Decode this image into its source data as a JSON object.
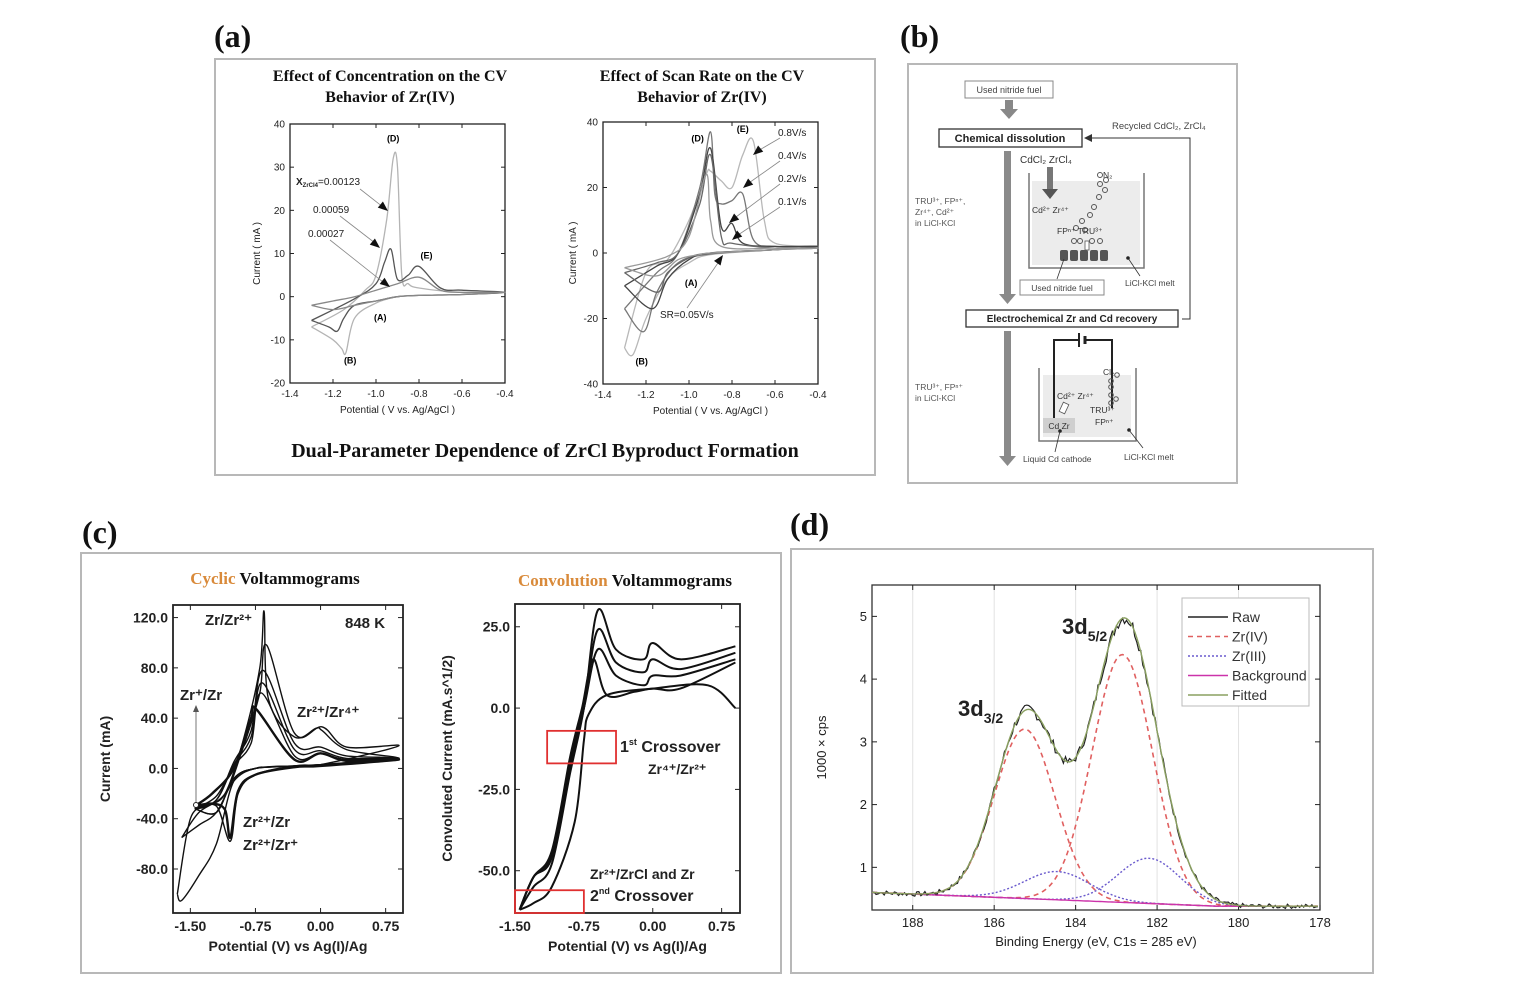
{
  "panels": {
    "a": {
      "letter": "(a)",
      "left_title": "Effect of Concentration on the CV Behavior of Zr(IV)",
      "right_title": "Effect of Scan Rate on the CV Behavior of Zr(IV)",
      "footer": "Dual-Parameter Dependence of ZrCl Byproduct Formation"
    },
    "b": {
      "letter": "(b)"
    },
    "c": {
      "letter": "(c)",
      "left_title_orange": "Cyclic",
      "left_title_rest": " Voltammograms",
      "right_title_orange": "Convolution",
      "right_title_rest": " Voltammograms"
    },
    "d": {
      "letter": "(d)"
    }
  },
  "flowchart": {
    "used_fuel_top": "Used nitride fuel",
    "chemical_dissolution": "Chemical dissolution",
    "recycled": "Recycled CdCl₂, ZrCl₄",
    "reagents": "CdCl₂ ZrCl₄",
    "n2": "N₂",
    "cd_zr_ions": "Cd²⁺ Zr⁴⁺",
    "fp_tru": "FPⁿ⁺ TRU³⁺",
    "side_text_1": [
      "TRU³⁺, FPⁿ⁺,",
      "Zr⁴⁺, Cd²⁺",
      "in LiCl-KCl"
    ],
    "used_fuel_label": "Used nitride fuel",
    "melt_label_1": "LiCl-KCl melt",
    "electrochemical": "Electrochemical Zr and Cd recovery",
    "cl2": "Cl₂",
    "cd_zr_ions_2": "Cd²⁺ Zr⁴⁺",
    "tru_fp": [
      "TRU³⁺",
      "FPⁿ⁺"
    ],
    "cd_zr_box": "Cd Zr",
    "side_text_2": [
      "TRU³⁺, FPⁿ⁺",
      "in LiCl-KCl"
    ],
    "cathode_label": "Liquid Cd cathode",
    "melt_label_2": "LiCl-KCl melt"
  },
  "chart_data": [
    {
      "id": "a-left",
      "type": "line",
      "title": "Effect of Concentration on the CV Behavior of Zr(IV)",
      "xlabel": "Potential ( V vs. Ag/AgCl )",
      "ylabel": "Current ( mA )",
      "xlim": [
        -1.4,
        -0.4
      ],
      "ylim": [
        -20,
        40
      ],
      "xticks": [
        "-1.4",
        "-1.2",
        "-1.0",
        "-0.8",
        "-0.6",
        "-0.4"
      ],
      "yticks": [
        "-20",
        "-10",
        "0",
        "10",
        "20",
        "30",
        "40"
      ],
      "annotations": [
        "(D)",
        "(E)",
        "(A)",
        "(B)"
      ],
      "series": [
        {
          "name": "X_ZrCl4=0.00123",
          "label_main": "X",
          "label_sub": "ZrCl4",
          "label_val": "=0.00123",
          "color": "#b4b4b4",
          "x": [
            -1.3,
            -1.2,
            -1.16,
            -1.14,
            -1.1,
            -1.0,
            -0.9,
            -0.8,
            -0.6,
            -0.4,
            -0.6,
            -0.8,
            -0.85,
            -0.88,
            -0.9,
            -0.92,
            -0.95,
            -1.0,
            -1.05,
            -1.15,
            -1.3
          ],
          "y": [
            -7,
            -10,
            -12,
            -13,
            -5,
            -1.5,
            0,
            0.3,
            0.5,
            1,
            1,
            2,
            3,
            5,
            30,
            32,
            18,
            5,
            1.5,
            -3,
            -7
          ]
        },
        {
          "name": "0.00059",
          "color": "#555555",
          "x": [
            -1.3,
            -1.22,
            -1.18,
            -1.15,
            -1.1,
            -1.0,
            -0.9,
            -0.8,
            -0.6,
            -0.4,
            -0.6,
            -0.7,
            -0.8,
            -0.85,
            -0.9,
            -0.93,
            -0.96,
            -1.0,
            -1.1,
            -1.3
          ],
          "y": [
            -5.5,
            -7,
            -8,
            -5,
            -2,
            -1,
            0,
            0.3,
            0.5,
            1,
            1.5,
            2,
            7,
            5,
            4,
            11,
            8,
            3,
            -0.5,
            -5.5
          ]
        },
        {
          "name": "0.00027",
          "color": "#888888",
          "x": [
            -1.3,
            -1.2,
            -1.1,
            -1.0,
            -0.9,
            -0.8,
            -0.6,
            -0.4,
            -0.6,
            -0.7,
            -0.8,
            -0.9,
            -1.0,
            -1.1,
            -1.2,
            -1.3
          ],
          "y": [
            -2,
            -3,
            -2,
            -1,
            0,
            0.3,
            0.5,
            1,
            1,
            1.5,
            4.5,
            3,
            1.5,
            0,
            -1,
            -2
          ]
        }
      ]
    },
    {
      "id": "a-right",
      "type": "line",
      "title": "Effect of Scan Rate on the CV Behavior of Zr(IV)",
      "xlabel": "Potential ( V vs. Ag/AgCl )",
      "ylabel": "Current ( mA )",
      "xlim": [
        -1.4,
        -0.4
      ],
      "ylim": [
        -40,
        40
      ],
      "xticks": [
        "-1.4",
        "-1.2",
        "-1.0",
        "-0.8",
        "-0.6",
        "-0.4"
      ],
      "yticks": [
        "-40",
        "-20",
        "0",
        "20",
        "40"
      ],
      "annotations": [
        "(D)",
        "(E)",
        "(A)",
        "(B)"
      ],
      "series": [
        {
          "name": "0.8V/s",
          "color": "#b8b8b8",
          "x": [
            -1.3,
            -1.26,
            -1.2,
            -1.1,
            -1.0,
            -0.9,
            -0.6,
            -0.4,
            -0.6,
            -0.65,
            -0.7,
            -0.75,
            -0.8,
            -0.85,
            -0.9,
            -0.92,
            -1.0,
            -1.1,
            -1.2,
            -1.3
          ],
          "y": [
            -29,
            -31,
            -20,
            -8,
            -3,
            -0.5,
            1,
            2,
            3,
            10,
            34,
            30,
            20,
            22,
            25,
            24,
            10,
            -2,
            -6,
            -29
          ]
        },
        {
          "name": "0.4V/s",
          "color": "#777777",
          "x": [
            -1.3,
            -1.21,
            -1.15,
            -1.05,
            -0.9,
            -0.6,
            -0.4,
            -0.6,
            -0.7,
            -0.75,
            -0.8,
            -0.85,
            -0.88,
            -0.9,
            -0.95,
            -1.05,
            -1.15,
            -1.3
          ],
          "y": [
            -17,
            -24,
            -12,
            -3,
            -0.3,
            1,
            2,
            2,
            4,
            18,
            16,
            15,
            18,
            37,
            20,
            0,
            -6,
            -17
          ]
        },
        {
          "name": "0.2V/s",
          "color": "#444444",
          "x": [
            -1.3,
            -1.17,
            -1.1,
            -1.0,
            -0.9,
            -0.6,
            -0.4,
            -0.6,
            -0.75,
            -0.8,
            -0.85,
            -0.9,
            -0.95,
            -1.05,
            -1.15,
            -1.3
          ],
          "y": [
            -10,
            -17,
            -8,
            -2,
            0,
            1,
            2,
            2,
            3,
            9,
            8,
            32,
            18,
            0,
            -4,
            -10
          ]
        },
        {
          "name": "0.1V/s",
          "color": "#666666",
          "x": [
            -1.3,
            -1.15,
            -1.1,
            -1.0,
            -0.9,
            -0.6,
            -0.4,
            -0.6,
            -0.8,
            -0.85,
            -0.9,
            -0.95,
            -1.05,
            -1.15,
            -1.3
          ],
          "y": [
            -6,
            -12,
            -6,
            -1.5,
            0,
            1,
            1.5,
            1.5,
            3,
            5,
            30,
            15,
            0,
            -3,
            -6
          ]
        },
        {
          "name": "SR=0.05V/s",
          "color": "#999999",
          "x": [
            -1.3,
            -1.15,
            -1.05,
            -0.95,
            -0.9,
            -0.6,
            -0.4,
            -0.6,
            -0.85,
            -0.9,
            -0.92,
            -1.0,
            -1.1,
            -1.3
          ],
          "y": [
            -4.5,
            -7,
            -2,
            -0.5,
            0,
            1,
            1.5,
            1.5,
            2,
            10,
            24,
            5,
            -1,
            -4.5
          ]
        }
      ],
      "series_labels": [
        "0.8V/s",
        "0.4V/s",
        "0.2V/s",
        "0.1V/s",
        "SR=0.05V/s"
      ]
    },
    {
      "id": "c-left",
      "type": "line",
      "title": "Cyclic Voltammograms",
      "xlabel": "Potential (V) vs Ag(I)/Ag",
      "ylabel": "Current (mA)",
      "xlim": [
        -1.7,
        0.95
      ],
      "ylim": [
        -115,
        130
      ],
      "xticks": [
        "-1.50",
        "-0.75",
        "0.00",
        "0.75"
      ],
      "xtick_values": [
        -1.5,
        -0.75,
        0,
        0.75
      ],
      "yticks": [
        "-80.0",
        "-40.0",
        "0.0",
        "40.0",
        "80.0",
        "120.0"
      ],
      "ytick_values": [
        -80,
        -40,
        0,
        40,
        80,
        120
      ],
      "annotations": [
        "Zr/Zr²⁺",
        "848 K",
        "Zr⁺/Zr",
        "Zr²⁺/Zr⁴⁺",
        "Zr²⁺/Zr",
        "Zr²⁺/Zr⁺"
      ],
      "peaks_mA": [
        125,
        98,
        78,
        68,
        60,
        47
      ],
      "series": [
        {
          "name": "scan1",
          "x": [
            -1.65,
            -1.6,
            -1.4,
            -1.2,
            -1.0,
            -0.75,
            -0.6,
            -0.25,
            0.0,
            0.3,
            0.9,
            0.3,
            0.02,
            -0.05,
            -0.3,
            -0.6,
            -0.65,
            -0.7,
            -0.9,
            -1.1,
            -1.3,
            -1.5,
            -1.65
          ],
          "y": [
            -100,
            -105,
            -85,
            -60,
            -10,
            0,
            1,
            2,
            3,
            4,
            8,
            15,
            30,
            32,
            25,
            55,
            125,
            80,
            20,
            -20,
            -30,
            -40,
            -100
          ]
        },
        {
          "name": "scan2",
          "x": [
            -1.6,
            -1.4,
            -1.2,
            -1.0,
            -0.75,
            -0.3,
            0.0,
            0.9,
            0.3,
            0.02,
            -0.3,
            -0.62,
            -0.7,
            -0.9,
            -1.1,
            -1.4,
            -1.6
          ],
          "y": [
            -55,
            -45,
            -35,
            -10,
            0,
            2,
            3,
            18,
            17,
            33,
            28,
            98,
            60,
            15,
            -20,
            -35,
            -55
          ]
        },
        {
          "name": "scan3",
          "x": [
            -1.45,
            -1.2,
            -1.0,
            -0.75,
            -0.3,
            0.0,
            0.9,
            0.3,
            0.0,
            -0.3,
            -0.66,
            -0.8,
            -1.0,
            -1.2,
            -1.45
          ],
          "y": [
            -32,
            -35,
            -8,
            0,
            2,
            3,
            8,
            10,
            17,
            20,
            78,
            30,
            5,
            -25,
            -32
          ]
        },
        {
          "name": "scan4",
          "x": [
            -1.45,
            -1.2,
            -1.0,
            -0.75,
            -0.3,
            0.0,
            0.9,
            0.3,
            0.0,
            -0.3,
            -0.67,
            -0.8,
            -1.0,
            -1.2,
            -1.45
          ],
          "y": [
            -32,
            -35,
            -8,
            0,
            2,
            3,
            8,
            8,
            14,
            15,
            68,
            25,
            3,
            -25,
            -32
          ]
        },
        {
          "name": "scan5",
          "x": [
            -1.45,
            -1.2,
            -1.04,
            -0.95,
            -0.75,
            -0.3,
            0.0,
            0.9,
            0.3,
            0.0,
            -0.3,
            -0.68,
            -0.8,
            -1.0,
            -1.2,
            -1.45
          ],
          "y": [
            -32,
            -30,
            -58,
            -20,
            -5,
            2,
            3,
            8,
            7,
            12,
            10,
            60,
            20,
            2,
            -22,
            -32
          ]
        },
        {
          "name": "scan6",
          "x": [
            -1.45,
            -1.25,
            -1.1,
            -1.04,
            -0.95,
            -0.75,
            -0.3,
            0.0,
            0.9,
            0.3,
            0.0,
            -0.3,
            -0.74,
            -0.8,
            -1.0,
            -1.25,
            -1.45
          ],
          "y": [
            -30,
            -28,
            -33,
            -55,
            -18,
            -5,
            1,
            2,
            7,
            6,
            12,
            7,
            47,
            40,
            0,
            -20,
            -30
          ]
        }
      ]
    },
    {
      "id": "c-right",
      "type": "line",
      "title": "Convolution Voltammograms",
      "xlabel": "Potential (V) vs Ag(I)/Ag",
      "ylabel": "Convoluted Current (mA.s^1/2)",
      "xlim": [
        -1.5,
        0.95
      ],
      "ylim": [
        -63,
        32
      ],
      "xticks": [
        "-1.50",
        "-0.75",
        "0.00",
        "0.75"
      ],
      "xtick_values": [
        -1.5,
        -0.75,
        0,
        0.75
      ],
      "yticks": [
        "-50.0",
        "-25.0",
        "0.0",
        "25.0"
      ],
      "ytick_values": [
        -50,
        -25,
        0,
        25
      ],
      "annotations": [
        "1st Crossover",
        "Zr⁴⁺/Zr²⁺",
        "Zr²⁺/ZrCl and Zr",
        "2nd Crossover"
      ],
      "crossover_boxes": [
        {
          "x": [
            -1.15,
            -0.4
          ],
          "y": [
            -17,
            -7
          ]
        },
        {
          "x": [
            -1.5,
            -0.75
          ],
          "y": [
            -63,
            -56
          ]
        }
      ],
      "series": [
        {
          "name": "scan1",
          "x": [
            -1.45,
            -1.3,
            -1.1,
            -0.9,
            -0.75,
            -0.6,
            -0.4,
            -0.1,
            0.0,
            0.3,
            0.9
          ],
          "y": [
            -62,
            -55,
            -48,
            -20,
            0,
            30,
            18,
            15,
            20,
            15,
            19
          ]
        },
        {
          "name": "scan2",
          "x": [
            -1.45,
            -1.3,
            -1.1,
            -0.9,
            -0.75,
            -0.6,
            -0.4,
            -0.1,
            0.0,
            0.3,
            0.9
          ],
          "y": [
            -62,
            -52,
            -46,
            -18,
            0,
            24,
            14,
            11,
            15,
            12,
            17
          ]
        },
        {
          "name": "scan3",
          "x": [
            -1.45,
            -1.3,
            -1.1,
            -0.9,
            -0.75,
            -0.6,
            -0.4,
            -0.1,
            0.0,
            0.3,
            0.9
          ],
          "y": [
            -62,
            -52,
            -45,
            -16,
            0,
            18,
            10,
            7,
            10,
            10,
            15
          ]
        },
        {
          "name": "scan4",
          "x": [
            -1.45,
            -1.3,
            -1.1,
            -0.9,
            -0.77,
            -0.65,
            -0.5,
            -0.2,
            0.0,
            0.3,
            0.9
          ],
          "y": [
            -62,
            -52,
            -44,
            -15,
            0,
            15,
            4,
            5,
            6,
            6,
            14
          ]
        },
        {
          "name": "return",
          "x": [
            0.9,
            0.6,
            0.0,
            -0.5,
            -0.7,
            -0.75,
            -0.85,
            -1.1,
            -1.3,
            -1.45
          ],
          "y": [
            0,
            7,
            6,
            4,
            -2,
            -10,
            -35,
            -55,
            -60,
            -62
          ]
        }
      ]
    },
    {
      "id": "d",
      "type": "line",
      "title": "",
      "xlabel": "Binding Energy (eV, C1s = 285 eV)",
      "ylabel": "1000 × cps",
      "xlim": [
        189,
        178
      ],
      "ylim": [
        0.32,
        5.5
      ],
      "xticks": [
        "188",
        "186",
        "184",
        "182",
        "180",
        "178"
      ],
      "xtick_values": [
        188,
        186,
        184,
        182,
        180,
        178
      ],
      "yticks": [
        "1",
        "2",
        "3",
        "4",
        "5"
      ],
      "ytick_values": [
        1,
        2,
        3,
        4,
        5
      ],
      "grid": true,
      "legend": "top-right",
      "annotations": [
        {
          "text": "3d",
          "sub": "3/2"
        },
        {
          "text": "3d",
          "sub": "5/2"
        }
      ],
      "components": {
        "zr_iv": [
          {
            "center": 185.25,
            "height": 2.7,
            "fwhm": 1.75
          },
          {
            "center": 182.85,
            "height": 3.95,
            "fwhm": 1.75
          }
        ],
        "zr_iii": [
          {
            "center": 184.45,
            "height": 0.45,
            "fwhm": 1.9
          },
          {
            "center": 182.2,
            "height": 0.72,
            "fwhm": 1.8
          }
        ],
        "background": {
          "from": [
            189,
            0.6
          ],
          "to": [
            180.5,
            0.38
          ]
        }
      },
      "series": [
        {
          "name": "Raw",
          "color": "#222222",
          "style": "solid"
        },
        {
          "name": "Zr(IV)",
          "color": "#e06060",
          "style": "dashed"
        },
        {
          "name": "Zr(III)",
          "color": "#6a5acd",
          "style": "dotted"
        },
        {
          "name": "Background",
          "color": "#cc33aa",
          "style": "solid"
        },
        {
          "name": "Fitted",
          "color": "#8aa060",
          "style": "solid"
        }
      ],
      "peak_values": {
        "3d3/2": 3.6,
        "3d5/2": 4.9,
        "valley_184": 2.4
      }
    }
  ]
}
